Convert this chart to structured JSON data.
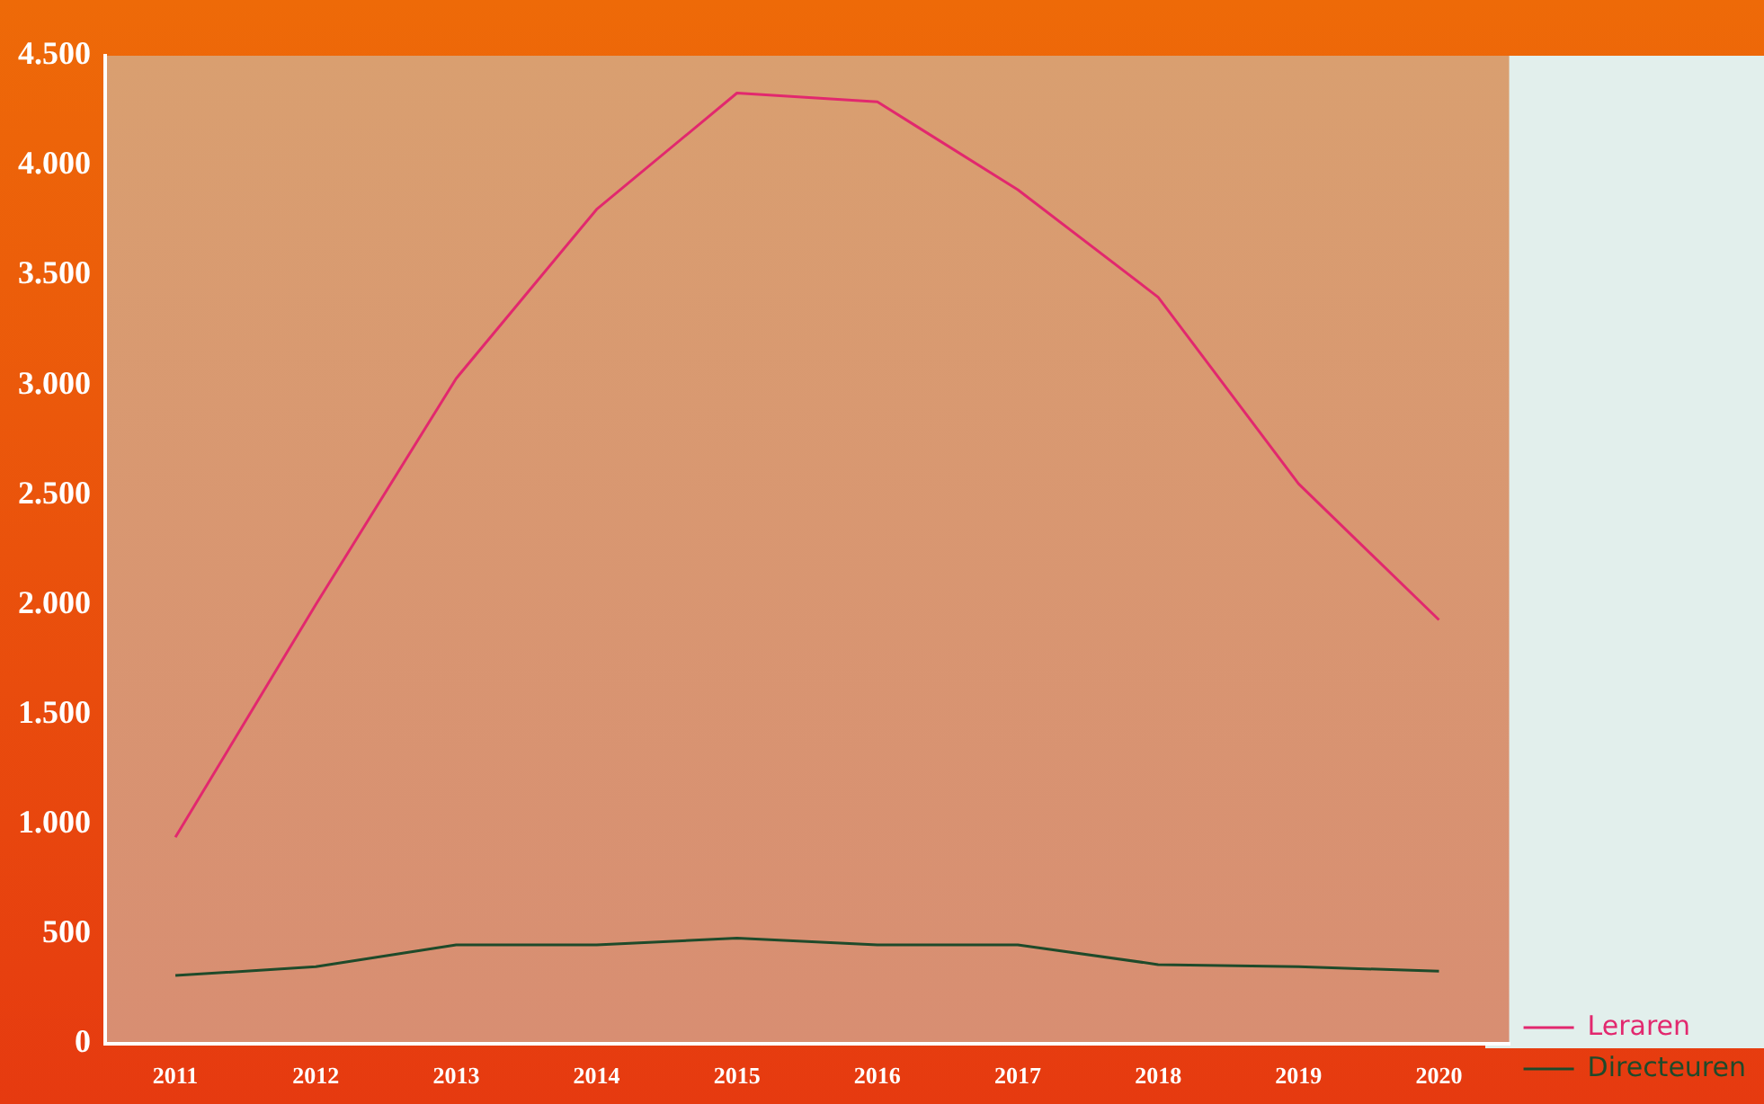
{
  "chart_data": {
    "type": "line",
    "categories": [
      "2011",
      "2012",
      "2013",
      "2014",
      "2015",
      "2016",
      "2017",
      "2018",
      "2019",
      "2020"
    ],
    "series": [
      {
        "name": "Leraren",
        "color": "#e2286e",
        "values": [
          940,
          2000,
          3030,
          3800,
          4330,
          4290,
          3890,
          3400,
          2550,
          1930
        ]
      },
      {
        "name": "Directeuren",
        "color": "#1f4a2a",
        "values": [
          310,
          350,
          450,
          450,
          480,
          450,
          450,
          360,
          350,
          330
        ]
      }
    ],
    "ylim": [
      0,
      4500
    ],
    "yticks": [
      {
        "value": 0,
        "label": "0"
      },
      {
        "value": 500,
        "label": "500"
      },
      {
        "value": 1000,
        "label": "1.000"
      },
      {
        "value": 1500,
        "label": "1.500"
      },
      {
        "value": 2000,
        "label": "2.000"
      },
      {
        "value": 2500,
        "label": "2.500"
      },
      {
        "value": 3000,
        "label": "3.000"
      },
      {
        "value": 3500,
        "label": "3.500"
      },
      {
        "value": 4000,
        "label": "4.000"
      },
      {
        "value": 4500,
        "label": "4.500"
      }
    ],
    "grid": false,
    "legend": "right",
    "marker": "none",
    "line_style": "solid"
  }
}
